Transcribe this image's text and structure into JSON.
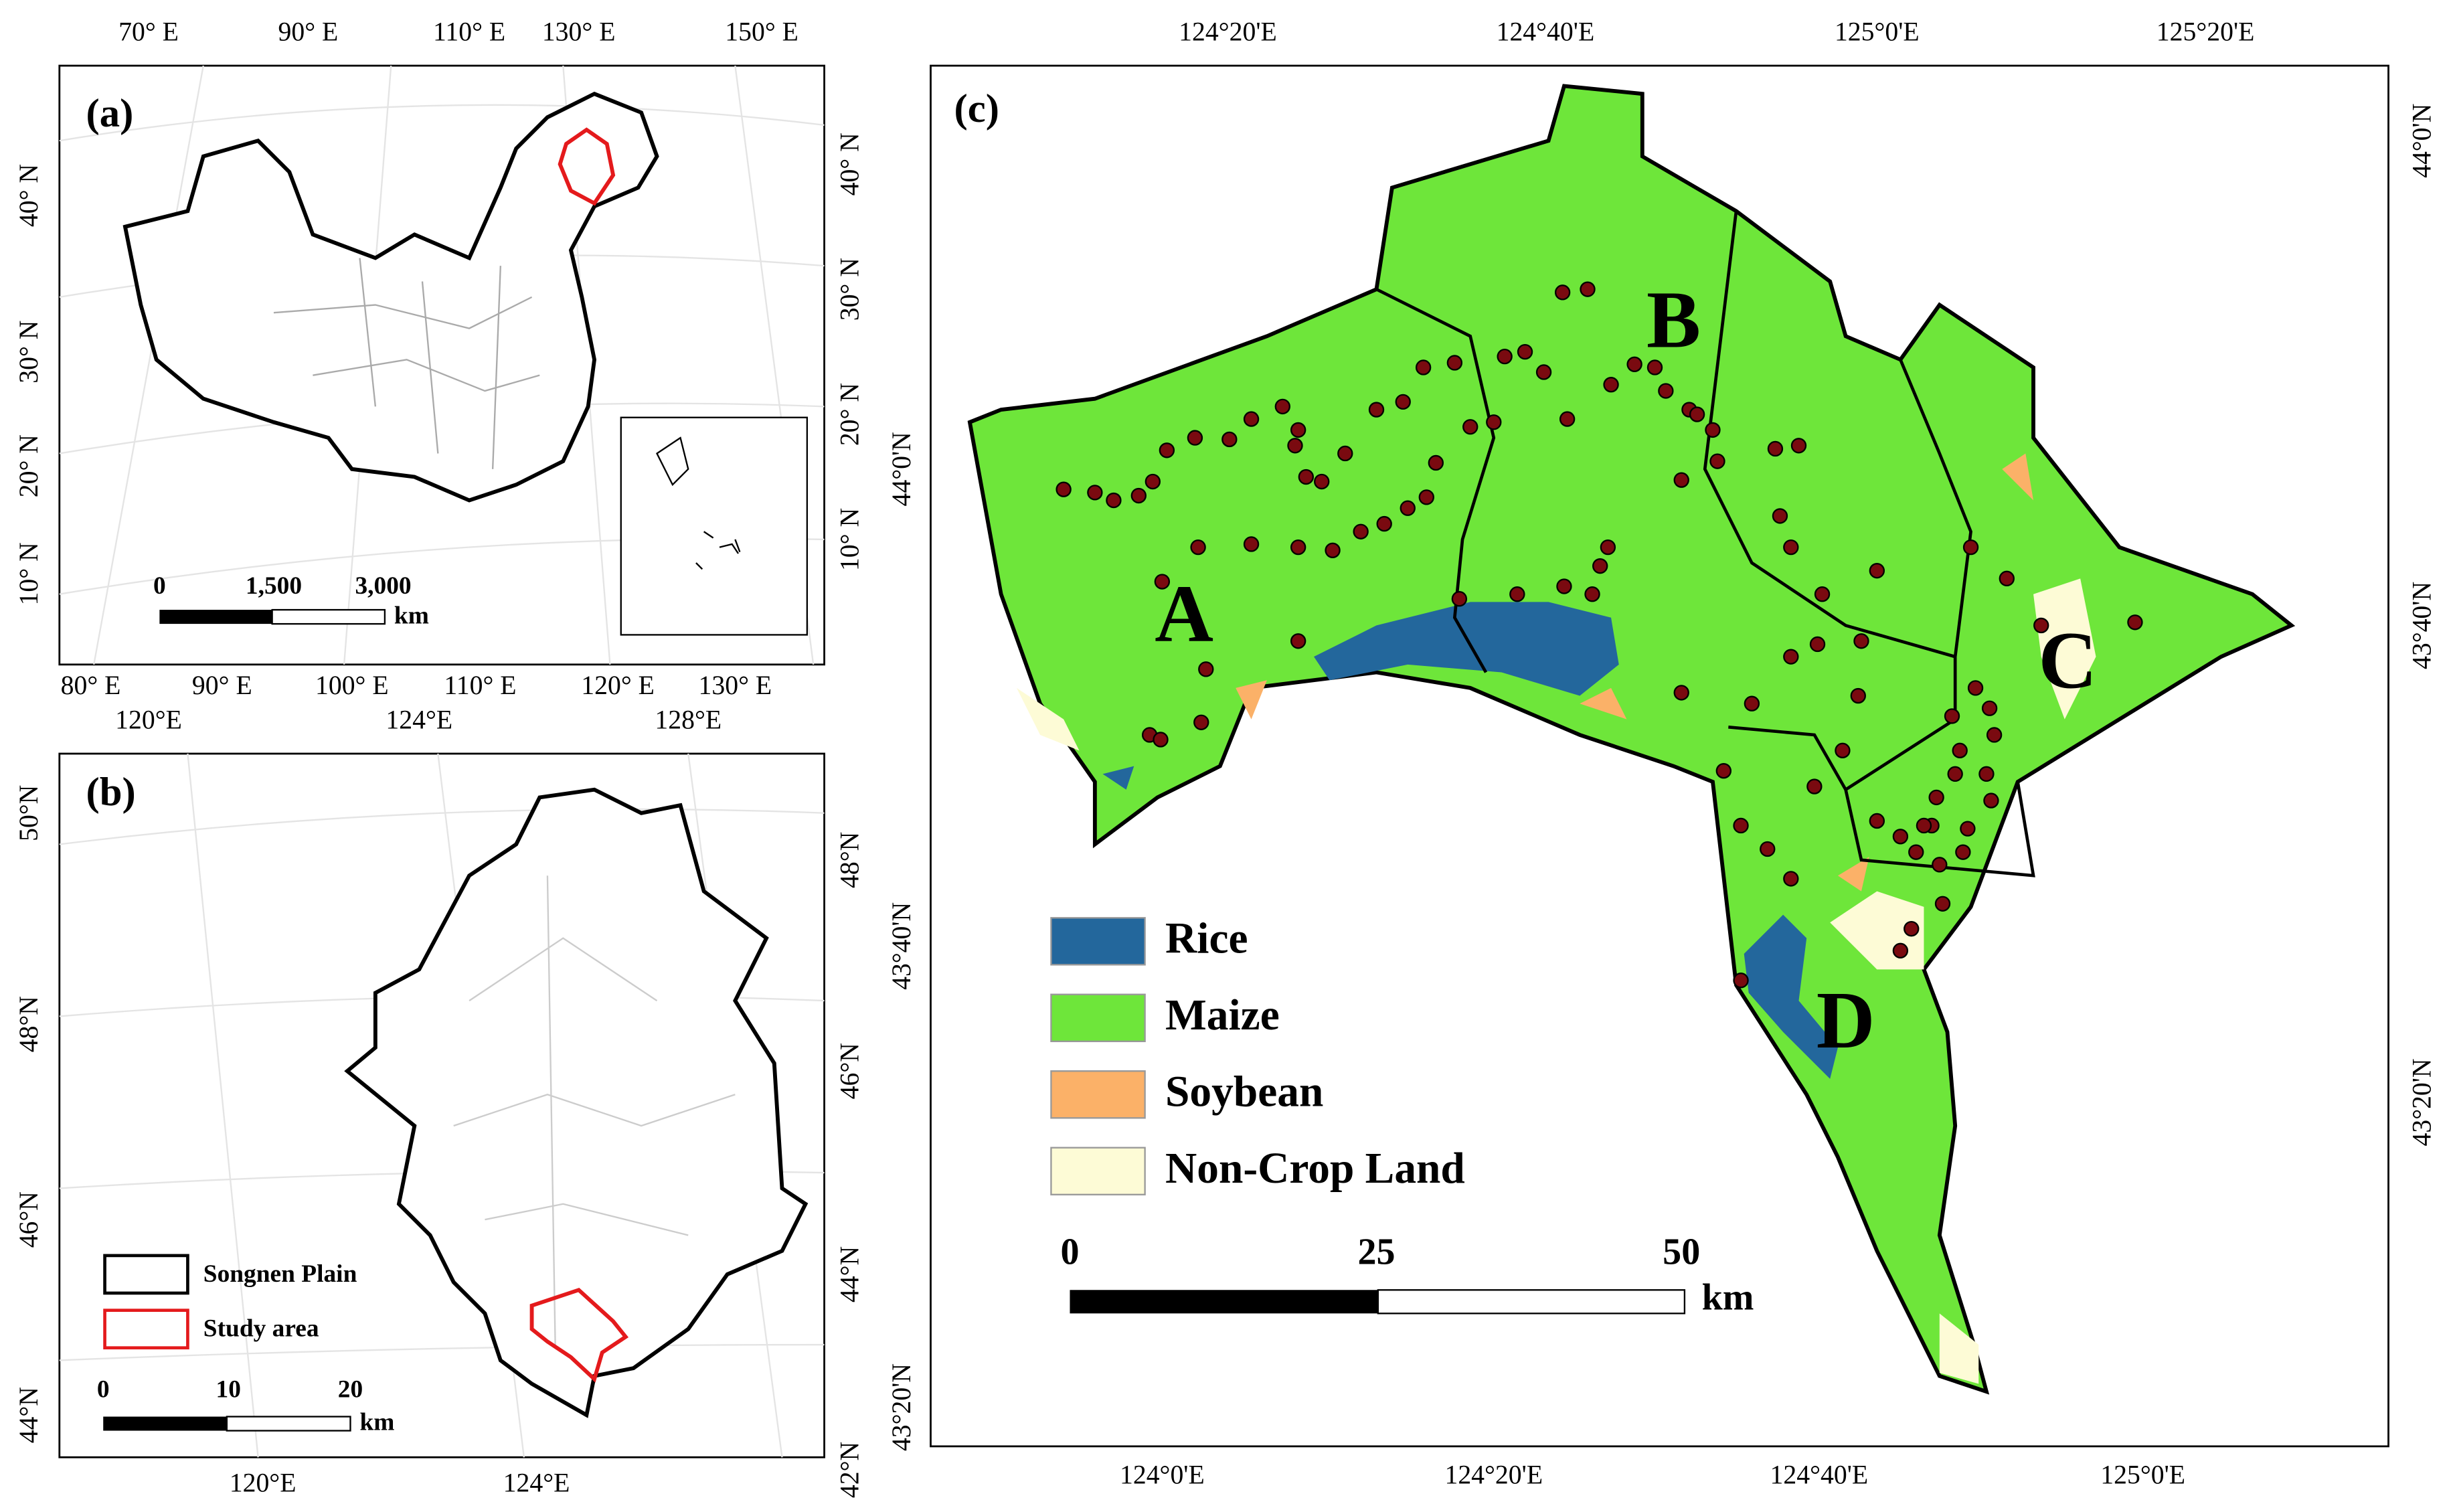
{
  "panel_a": {
    "label": "(a)",
    "top_ticks": [
      "70° E",
      "90° E",
      "110° E",
      "130° E",
      "150° E"
    ],
    "bottom_ticks": [
      "80° E",
      "90° E",
      "100° E",
      "110° E",
      "120° E",
      "130° E"
    ],
    "left_ticks": [
      "40° N",
      "30° N",
      "20° N",
      "10° N"
    ],
    "right_ticks": [
      "40° N",
      "30° N",
      "20° N",
      "10° N"
    ],
    "scale": {
      "labels": [
        "0",
        "1,500",
        "3,000"
      ],
      "unit": "km"
    }
  },
  "panel_b": {
    "label": "(b)",
    "top_ticks": [
      "120°E",
      "124°E",
      "128°E"
    ],
    "bottom_ticks": [
      "120°E",
      "124°E"
    ],
    "left_ticks": [
      "50°N",
      "48°N",
      "46°N",
      "44°N"
    ],
    "right_ticks": [
      "48°N",
      "46°N",
      "44°N",
      "42°N"
    ],
    "legend": [
      {
        "name": "Songnen Plain",
        "color": "#000000"
      },
      {
        "name": "Study area",
        "color": "#e41a1c"
      }
    ],
    "scale": {
      "labels": [
        "0",
        "10",
        "20"
      ],
      "unit": "km"
    }
  },
  "panel_c": {
    "label": "(c)",
    "top_ticks": [
      "124°20'E",
      "124°40'E",
      "125°0'E",
      "125°20'E"
    ],
    "bottom_ticks": [
      "124°0'E",
      "124°20'E",
      "124°40'E",
      "125°0'E"
    ],
    "left_ticks": [
      "44°0'N",
      "43°40'N",
      "43°20'N"
    ],
    "right_ticks": [
      "44°0'N",
      "43°40'N",
      "43°20'N"
    ],
    "regions": [
      "A",
      "B",
      "C",
      "D"
    ],
    "legend": [
      {
        "name": "Rice",
        "color": "#23679c"
      },
      {
        "name": "Maize",
        "color": "#6ee63a"
      },
      {
        "name": "Soybean",
        "color": "#fbb168"
      },
      {
        "name": "Non-Crop Land",
        "color": "#fdfbd6"
      }
    ],
    "scale": {
      "labels": [
        "0",
        "25",
        "50"
      ],
      "unit": "km"
    }
  }
}
